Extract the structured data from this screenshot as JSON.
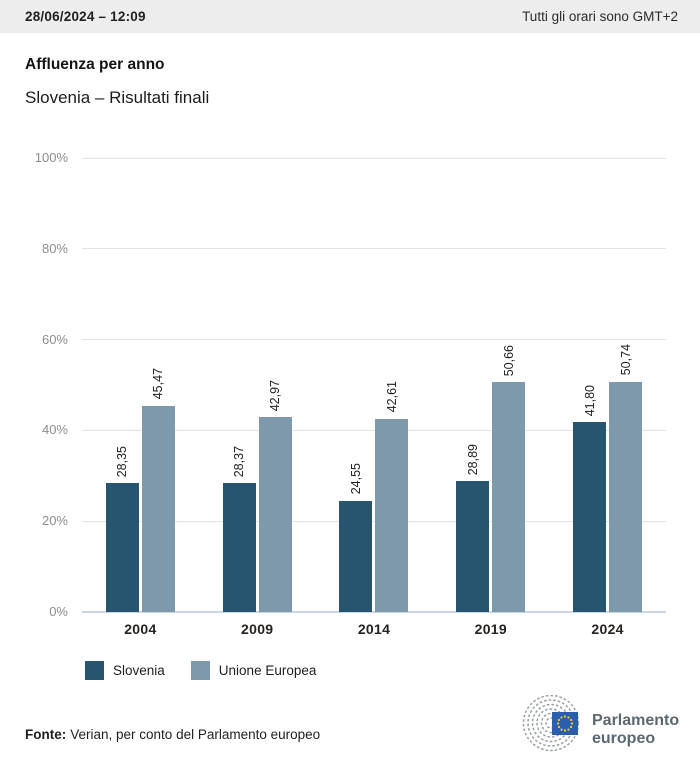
{
  "header": {
    "datetime": "28/06/2024 – 12:09",
    "timezone_note": "Tutti gli orari sono GMT+2"
  },
  "title": "Affluenza per anno",
  "subtitle": "Slovenia – Risultati finali",
  "chart_data": {
    "type": "bar",
    "categories": [
      "2004",
      "2009",
      "2014",
      "2019",
      "2024"
    ],
    "series": [
      {
        "name": "Slovenia",
        "color": "#27546f",
        "values": [
          28.35,
          28.37,
          24.55,
          28.89,
          41.8
        ],
        "labels": [
          "28,35",
          "28,37",
          "24,55",
          "28,89",
          "41,80"
        ]
      },
      {
        "name": "Unione Europea",
        "color": "#7e99ab",
        "values": [
          45.47,
          42.97,
          42.61,
          50.66,
          50.74
        ],
        "labels": [
          "45,47",
          "42,97",
          "42,61",
          "50,66",
          "50,74"
        ]
      }
    ],
    "ylim": [
      0,
      100
    ],
    "yticks": [
      0,
      20,
      40,
      60,
      80,
      100
    ],
    "ytick_suffix": "%",
    "grid": true,
    "data_labels_rotated": true,
    "legend_position": "bottom"
  },
  "footer": {
    "source_label": "Fonte:",
    "source_text": "Verian, per conto del Parlamento europeo",
    "logo": {
      "line1": "Parlamento",
      "line2": "europeo"
    }
  },
  "colors": {
    "header_bg": "#ededed",
    "gridline": "#e3e3e3",
    "axis_baseline": "#c9d7e4",
    "tick_label": "#8d8d8d",
    "eu_flag_blue": "#2b5fad",
    "eu_star_yellow": "#f7d117",
    "logo_arcs_gray": "#9aa0a4",
    "logo_text": "#5b6872"
  }
}
